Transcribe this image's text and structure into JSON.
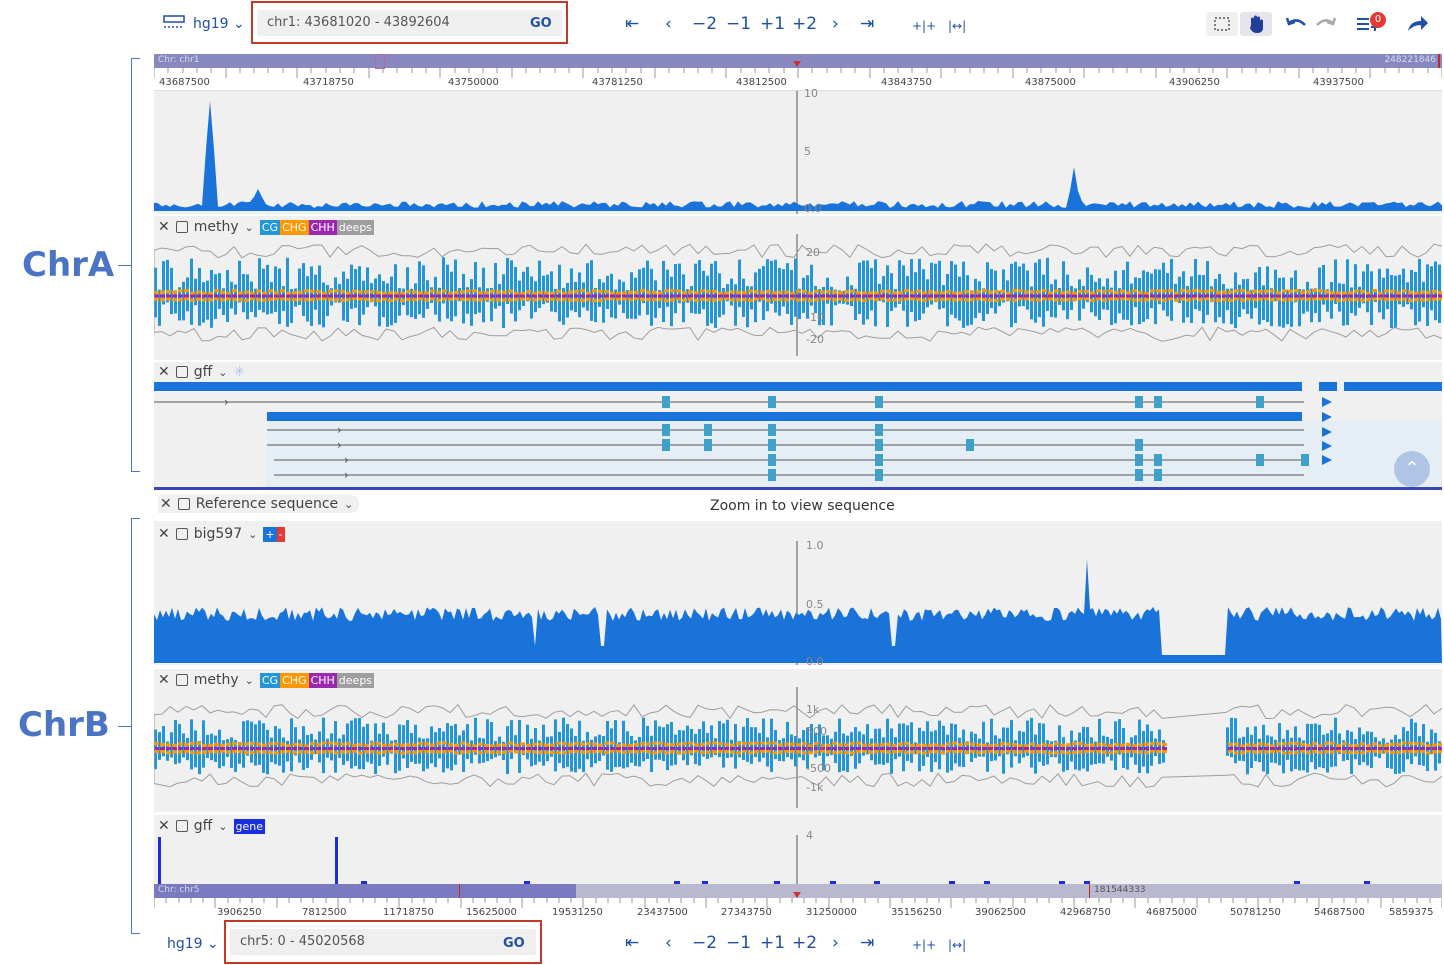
{
  "top_bar": {
    "assembly": "hg19",
    "location": "chr1: 43681020 - 43892604",
    "go_label": "GO",
    "nav_buttons": [
      "⇤",
      "‹",
      "−2",
      "−1",
      "+1",
      "+2",
      "›",
      "⇥"
    ],
    "zoom_buttons": [
      "+|+",
      "|↔|"
    ],
    "notification_count": "0"
  },
  "bottom_bar": {
    "assembly": "hg19",
    "location": "chr5: 0 - 45020568",
    "go_label": "GO",
    "nav_buttons": [
      "⇤",
      "‹",
      "−2",
      "−1",
      "+1",
      "+2",
      "›",
      "⇥"
    ],
    "zoom_buttons": [
      "+|+",
      "|↔|"
    ]
  },
  "side_labels": {
    "a": "ChrA",
    "b": "ChrB"
  },
  "overview_top": {
    "chr_label": "Chr: chr1",
    "end_label": "248221846",
    "ticks": [
      "43687500",
      "43718750",
      "43750000",
      "43781250",
      "43812500",
      "43843750",
      "43875000",
      "43906250",
      "43937500"
    ]
  },
  "overview_bottom": {
    "chr_label": "Chr: chr5",
    "mid_label": "181544333",
    "ticks": [
      "3906250",
      "7812500",
      "11718750",
      "15625000",
      "19531250",
      "23437500",
      "27343750",
      "31250000",
      "35156250",
      "39062500",
      "42968750",
      "46875000",
      "50781250",
      "54687500",
      "5859375"
    ]
  },
  "tracks": {
    "a_coverage": {
      "y_labels": [
        "10",
        "5",
        "0.0"
      ]
    },
    "a_methy": {
      "name": "methy",
      "chips": [
        "CG",
        "CHG",
        "CHH",
        "deeps"
      ],
      "y_labels": [
        "20",
        "10",
        "-10",
        "-20"
      ]
    },
    "a_gff": {
      "name": "gff"
    },
    "ref_seq": {
      "name": "Reference sequence",
      "message": "Zoom in to view sequence"
    },
    "b_big": {
      "name": "big597",
      "chips": [
        "+",
        "-"
      ],
      "y_labels": [
        "1.0",
        "0.5",
        "0.0"
      ]
    },
    "b_methy": {
      "name": "methy",
      "chips": [
        "CG",
        "CHG",
        "CHH",
        "deeps"
      ],
      "y_labels": [
        "1k",
        "500",
        "0.0",
        "-500",
        "-1k"
      ]
    },
    "b_gff": {
      "name": "gff",
      "chips": [
        "gene"
      ],
      "y_labels": [
        "4"
      ]
    }
  },
  "colors": {
    "accent": "#1f4fa8",
    "coverage": "#1a73d9",
    "cg": "#2196d8",
    "chg": "#ff9800",
    "chh": "#9c27b0",
    "deeps": "#9e9e9e",
    "gene": "#1a2ee0",
    "highlight_box": "#c0392b"
  }
}
